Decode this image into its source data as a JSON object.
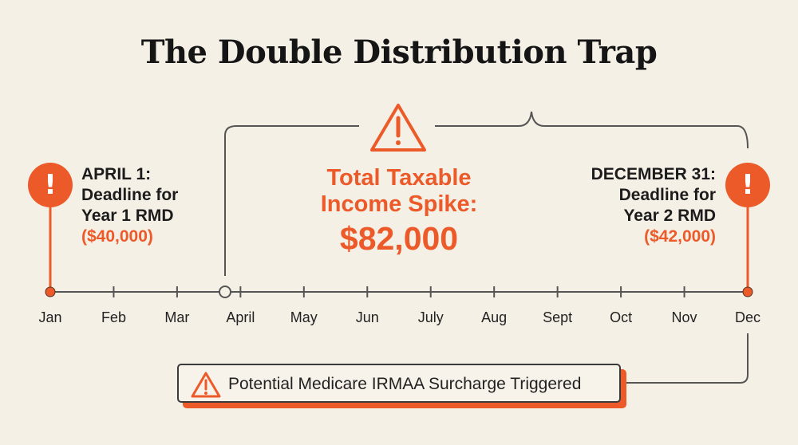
{
  "title": "The Double Distribution Trap",
  "timeline": {
    "months": [
      "Jan",
      "Feb",
      "Mar",
      "April",
      "May",
      "Jun",
      "July",
      "Aug",
      "Sept",
      "Oct",
      "Nov",
      "Dec"
    ]
  },
  "events": {
    "year1": {
      "line1": "APRIL 1:",
      "line2": "Deadline for",
      "line3": "Year 1 RMD",
      "amount": "($40,000)"
    },
    "year2": {
      "line1": "DECEMBER 31:",
      "line2": "Deadline for",
      "line3": "Year 2 RMD",
      "amount": "($42,000)"
    }
  },
  "spike": {
    "line1": "Total Taxable",
    "line2": "Income Spike:",
    "value": "$82,000"
  },
  "callout": {
    "text": "Potential Medicare IRMAA Surcharge Triggered"
  },
  "icons": {
    "pin_left": "exclamation-icon",
    "pin_right": "exclamation-icon",
    "spike_warning": "warning-triangle-icon",
    "callout_warning": "warning-triangle-icon"
  },
  "colors": {
    "accent": "#ec5a2a",
    "background": "#f5f0e6",
    "line": "#555555",
    "text": "#1c1c1c"
  }
}
